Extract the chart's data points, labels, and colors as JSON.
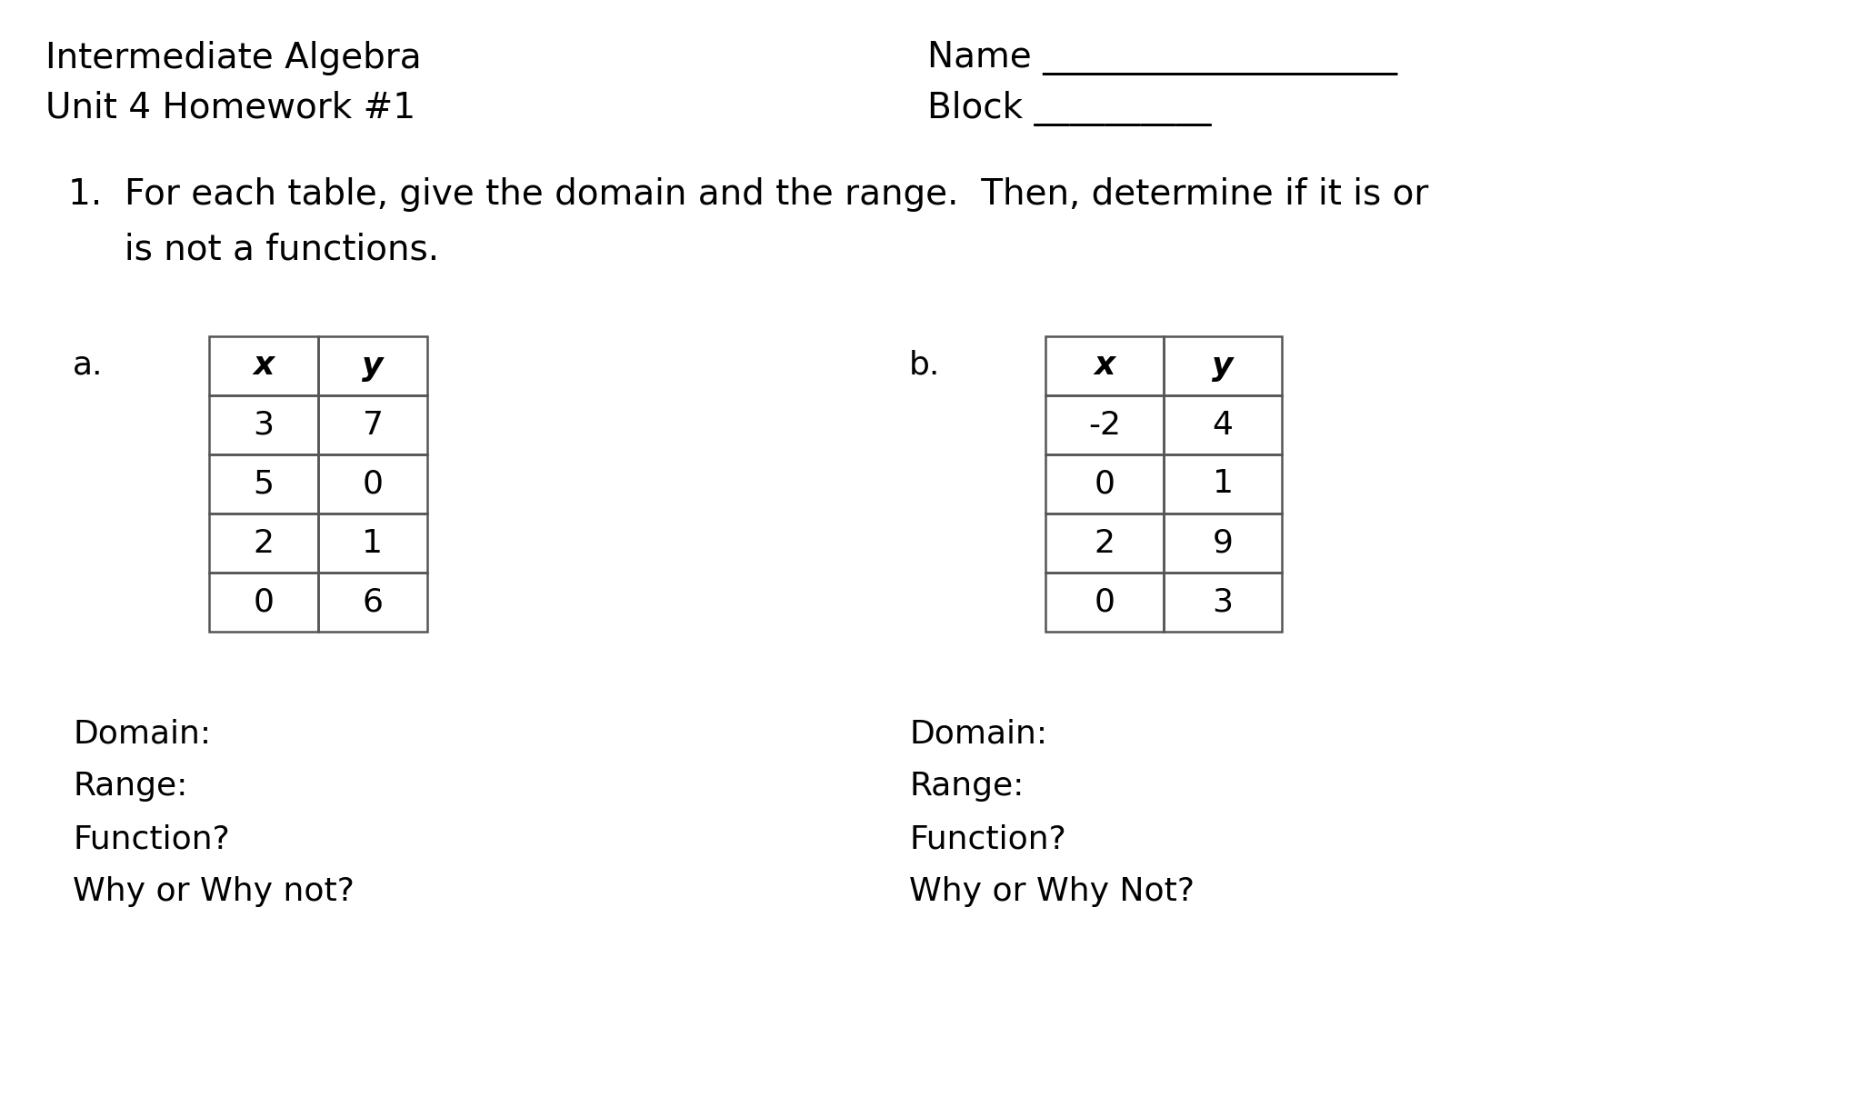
{
  "background_color": "#ffffff",
  "title_left_line1": "Intermediate Algebra",
  "title_left_line2": "Unit 4 Homework #1",
  "title_right_line1": "Name ____________________",
  "title_right_line2": "Block __________",
  "question_line1": "1.  For each table, give the domain and the range.  Then, determine if it is or",
  "question_line2": "     is not a functions.",
  "label_a": "a.",
  "label_b": "b.",
  "table_a_headers": [
    "x",
    "y"
  ],
  "table_a_data": [
    [
      "3",
      "7"
    ],
    [
      "5",
      "0"
    ],
    [
      "2",
      "1"
    ],
    [
      "0",
      "6"
    ]
  ],
  "table_b_headers": [
    "x",
    "y"
  ],
  "table_b_data": [
    [
      "-2",
      "4"
    ],
    [
      "0",
      "1"
    ],
    [
      "2",
      "9"
    ],
    [
      "0",
      "3"
    ]
  ],
  "below_a_lines": [
    "Domain:",
    "Range:",
    "Function?",
    "Why or Why not?"
  ],
  "below_b_lines": [
    "Domain:",
    "Range:",
    "Function?",
    "Why or Why Not?"
  ],
  "font_size_title": 28,
  "font_size_question": 28,
  "font_size_body": 26,
  "font_size_table": 26,
  "font_size_label": 26
}
